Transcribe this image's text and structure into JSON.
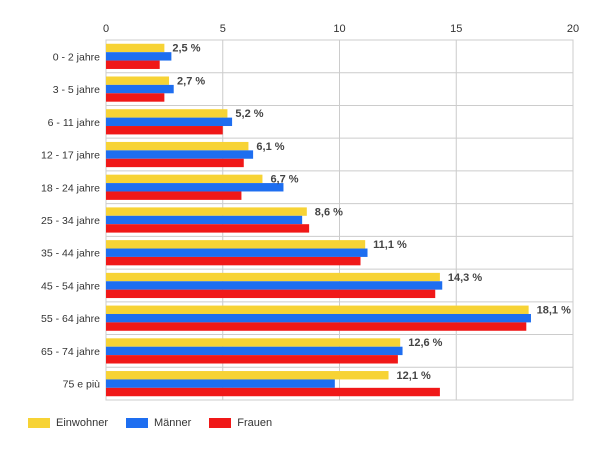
{
  "chart_data": {
    "type": "bar",
    "orientation": "horizontal",
    "categories": [
      "0 - 2 jahre",
      "3 - 5 jahre",
      "6 - 11 jahre",
      "12 - 17 jahre",
      "18 - 24 jahre",
      "25 - 34 jahre",
      "35 - 44 jahre",
      "45 - 54 jahre",
      "55 - 64 jahre",
      "65 - 74 jahre",
      "75 e più"
    ],
    "series": [
      {
        "name": "Einwohner",
        "color": "#f7d335",
        "values": [
          2.5,
          2.7,
          5.2,
          6.1,
          6.7,
          8.6,
          11.1,
          14.3,
          18.1,
          12.6,
          12.1
        ]
      },
      {
        "name": "Männer",
        "color": "#1e6ef0",
        "values": [
          2.8,
          2.9,
          5.4,
          6.3,
          7.6,
          8.4,
          11.2,
          14.4,
          18.2,
          12.7,
          9.8
        ]
      },
      {
        "name": "Frauen",
        "color": "#f01818",
        "values": [
          2.3,
          2.5,
          5.0,
          5.9,
          5.8,
          8.7,
          10.9,
          14.1,
          18.0,
          12.5,
          14.3
        ]
      }
    ],
    "data_labels": [
      "2,5 %",
      "2,7 %",
      "5,2 %",
      "6,1 %",
      "6,7 %",
      "8,6 %",
      "11,1 %",
      "14,3 %",
      "18,1 %",
      "12,6 %",
      "12,1 %"
    ],
    "xlim": [
      0,
      20
    ],
    "xticks": [
      0,
      5,
      10,
      15,
      20
    ],
    "xtick_labels": [
      "0",
      "5",
      "10",
      "15",
      "20"
    ],
    "grid": true,
    "legend_position": "bottom-left"
  }
}
